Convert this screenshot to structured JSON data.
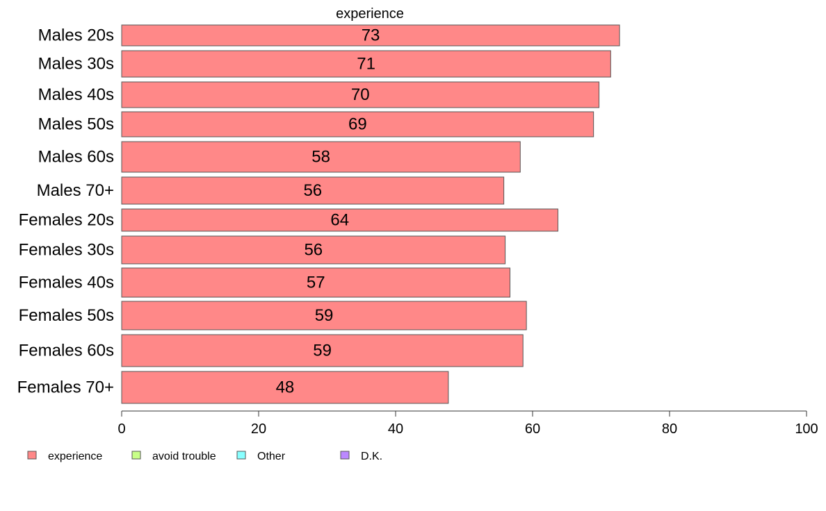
{
  "chart_data": {
    "type": "bar",
    "orientation": "horizontal",
    "title": "experience",
    "categories": [
      "Males 20s",
      "Males 30s",
      "Males 40s",
      "Males 50s",
      "Males 60s",
      "Males 70+",
      "Females 20s",
      "Females 30s",
      "Females 40s",
      "Females 50s",
      "Females 60s",
      "Females 70+"
    ],
    "values": [
      72.7,
      71.4,
      69.7,
      68.9,
      58.2,
      55.8,
      63.7,
      56.0,
      56.7,
      59.1,
      58.6,
      47.7
    ],
    "value_labels": [
      "73",
      "71",
      "70",
      "69",
      "58",
      "56",
      "64",
      "56",
      "57",
      "59",
      "59",
      "48"
    ],
    "xlim": [
      0,
      100
    ],
    "x_ticks": [
      0,
      20,
      40,
      60,
      80,
      100
    ],
    "x_tick_labels": [
      "0",
      "20",
      "40",
      "60",
      "80",
      "100"
    ],
    "grid": false,
    "bar_color": "#ff8888",
    "legend": {
      "placement": "bottom",
      "entries": [
        {
          "label": "experience",
          "color": "#ff8888"
        },
        {
          "label": "avoid trouble",
          "color": "#c8ff88"
        },
        {
          "label": "Other",
          "color": "#88ffff"
        },
        {
          "label": "D.K.",
          "color": "#bb88ff"
        }
      ]
    }
  }
}
